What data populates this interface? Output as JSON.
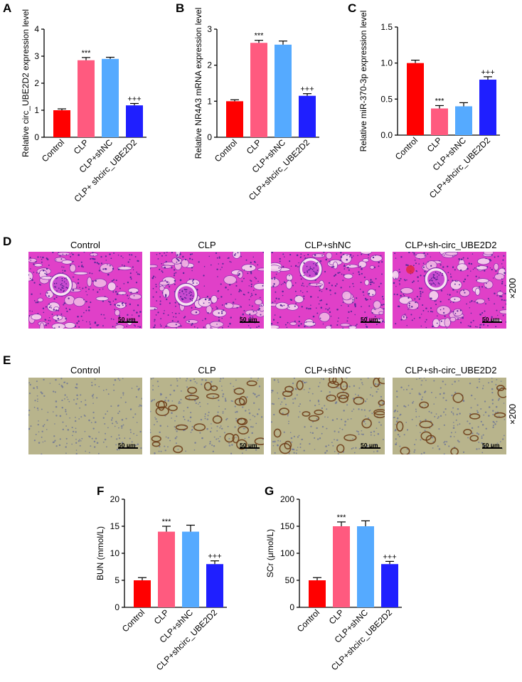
{
  "panel_letters": {
    "A": "A",
    "B": "B",
    "C": "C",
    "D": "D",
    "E": "E",
    "F": "F",
    "G": "G"
  },
  "colors": {
    "control": "#ff0000",
    "clp": "#ff5a7f",
    "clp_shnc": "#55aaff",
    "clp_shcirc": "#1f1fff"
  },
  "chart_data": [
    {
      "id": "A",
      "type": "bar",
      "categories": [
        "Control",
        "CLP",
        "CLP+shNC",
        "CLP+ shcirc_UBE2D2"
      ],
      "values": [
        1.0,
        2.85,
        2.9,
        1.18
      ],
      "errors": [
        0.05,
        0.1,
        0.06,
        0.07
      ],
      "annotations": [
        "",
        "***",
        "",
        "+++"
      ],
      "ylabel": "Relative circ_UBE2D2 expression level",
      "ylim": [
        0,
        4
      ],
      "yticks": [
        0,
        1,
        2,
        3,
        4
      ]
    },
    {
      "id": "B",
      "type": "bar",
      "categories": [
        "Control",
        "CLP",
        "CLP+shNC",
        "CLP+shcirc_UBE2D2"
      ],
      "values": [
        1.0,
        2.62,
        2.57,
        1.15
      ],
      "errors": [
        0.04,
        0.07,
        0.1,
        0.06
      ],
      "annotations": [
        "",
        "***",
        "",
        "+++"
      ],
      "ylabel": "Relative NR4A3 mRNA expression level",
      "ylim": [
        0,
        3
      ],
      "yticks": [
        0,
        1,
        2,
        3
      ]
    },
    {
      "id": "C",
      "type": "bar",
      "categories": [
        "Control",
        "CLP",
        "CLP+shNC",
        "CLP+shcirc_UBE2D2"
      ],
      "values": [
        1.0,
        0.37,
        0.4,
        0.77
      ],
      "errors": [
        0.04,
        0.04,
        0.05,
        0.04
      ],
      "annotations": [
        "",
        "***",
        "",
        "+++"
      ],
      "ylabel": "Relative miR-370-3p expression level",
      "ylim": [
        0,
        1.5
      ],
      "yticks": [
        "0.0",
        "0.5",
        "1.0",
        "1.5"
      ]
    },
    {
      "id": "F",
      "type": "bar",
      "categories": [
        "Control",
        "CLP",
        "CLP+shNC",
        "CLP+shcirc_UBE2D2"
      ],
      "values": [
        5.0,
        14.0,
        14.0,
        8.0
      ],
      "errors": [
        0.5,
        1.0,
        1.2,
        0.6
      ],
      "annotations": [
        "",
        "***",
        "",
        "+++"
      ],
      "ylabel": "BUN (mmol/L)",
      "ylim": [
        0,
        20
      ],
      "yticks": [
        0,
        5,
        10,
        15,
        20
      ]
    },
    {
      "id": "G",
      "type": "bar",
      "categories": [
        "Control",
        "CLP",
        "CLP+shNC",
        "CLP+shcirc_UBE2D2"
      ],
      "values": [
        50,
        150,
        150,
        80
      ],
      "errors": [
        5,
        8,
        10,
        5
      ],
      "annotations": [
        "",
        "***",
        "",
        "+++"
      ],
      "ylabel": "SCr (μmol/L)",
      "ylim": [
        0,
        200
      ],
      "yticks": [
        0,
        50,
        100,
        150,
        200
      ]
    }
  ],
  "he_row": {
    "titles": [
      "Control",
      "CLP",
      "CLP+shNC",
      "CLP+sh-circ_UBE2D2"
    ],
    "scale_label": "50 μm",
    "magnification": "×200"
  },
  "ihc_row": {
    "titles": [
      "Control",
      "CLP",
      "CLP+shNC",
      "CLP+sh-circ_UBE2D2"
    ],
    "scale_label": "50 μm",
    "magnification": "×200"
  }
}
